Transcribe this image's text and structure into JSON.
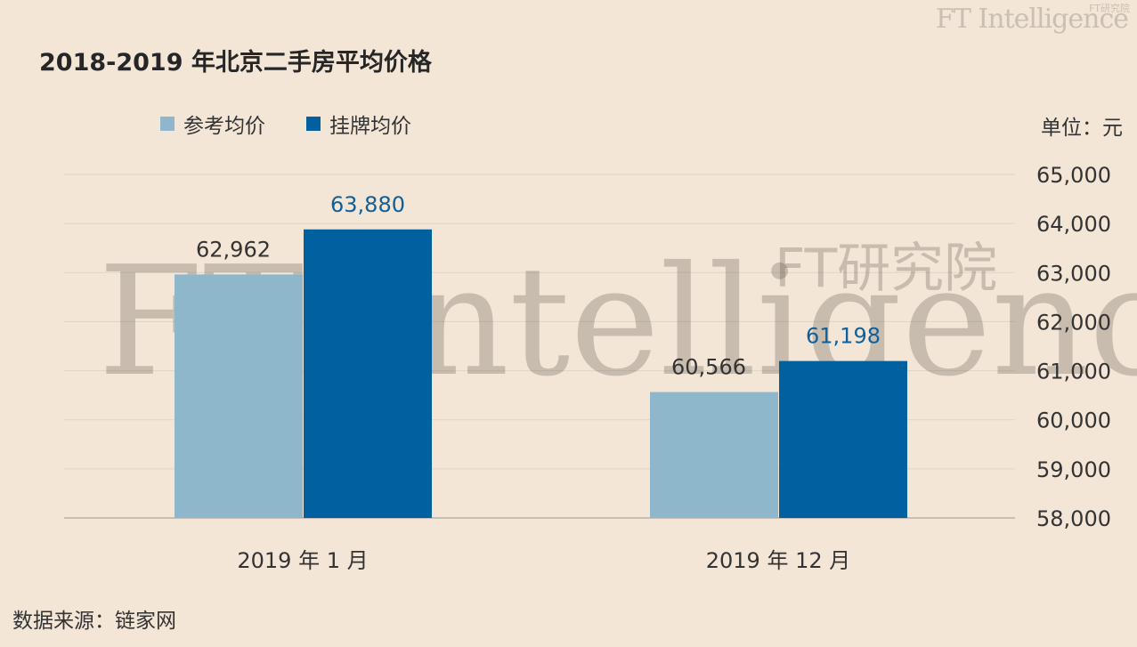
{
  "brand": {
    "name": "FT Intelligence",
    "sub": "FT研究院"
  },
  "watermark": {
    "main": "FT Intelligence",
    "sub": "FT研究院"
  },
  "colors": {
    "background": "#f3e6d7",
    "series_reference": "#8fb7cc",
    "series_listing": "#0060a0",
    "grid": "#d8cfc4",
    "axis_text": "#333333",
    "listing_label": "#0f5f9a"
  },
  "chart_data": {
    "type": "bar",
    "title": "2018-2019 年北京二手房平均价格",
    "unit_label": "单位：元",
    "categories": [
      "2019 年 1 月",
      "2019 年 12 月"
    ],
    "series": [
      {
        "name": "参考均价",
        "values": [
          62962,
          60566
        ],
        "labels": [
          "62,962",
          "60,566"
        ],
        "color": "#8fb7cc"
      },
      {
        "name": "挂牌均价",
        "values": [
          63880,
          61198
        ],
        "labels": [
          "63,880",
          "61,198"
        ],
        "color": "#0060a0"
      }
    ],
    "ylim": [
      58000,
      65000
    ],
    "yticks": [
      58000,
      59000,
      60000,
      61000,
      62000,
      63000,
      64000,
      65000
    ],
    "ytick_labels": [
      "58,000",
      "59,000",
      "60,000",
      "61,000",
      "62,000",
      "63,000",
      "64,000",
      "65,000"
    ],
    "y_axis_side": "right",
    "grid": true,
    "legend_placement": "top-left"
  },
  "source": "数据来源：链家网"
}
